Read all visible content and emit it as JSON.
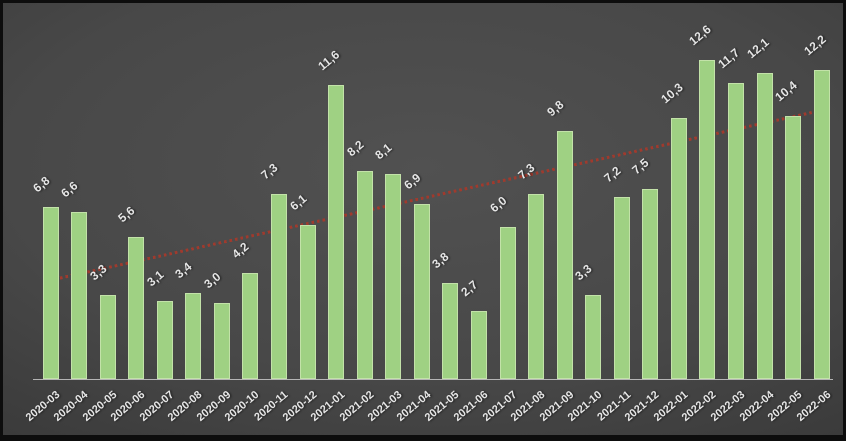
{
  "chart_data": {
    "type": "bar",
    "title": "",
    "xlabel": "",
    "ylabel": "",
    "ylim": [
      0,
      14
    ],
    "grid": false,
    "legend": false,
    "decimal_separator": ",",
    "categories": [
      "2020-03",
      "2020-04",
      "2020-05",
      "2020-06",
      "2020-07",
      "2020-08",
      "2020-09",
      "2020-10",
      "2020-11",
      "2020-12",
      "2021-01",
      "2021-02",
      "2021-03",
      "2021-04",
      "2021-05",
      "2021-06",
      "2021-07",
      "2021-08",
      "2021-09",
      "2021-10",
      "2021-11",
      "2021-12",
      "2022-01",
      "2022-02",
      "2022-03",
      "2022-04",
      "2022-05",
      "2022-06"
    ],
    "values": [
      6.8,
      6.6,
      3.3,
      5.6,
      3.1,
      3.4,
      3.0,
      4.2,
      7.3,
      6.1,
      11.6,
      8.2,
      8.1,
      6.9,
      3.8,
      2.7,
      6.0,
      7.3,
      9.8,
      3.3,
      7.2,
      7.5,
      10.3,
      12.6,
      11.7,
      12.1,
      10.4,
      12.2
    ],
    "data_labels": [
      "6,8",
      "6,6",
      "3,3",
      "5,6",
      "3,1",
      "3,4",
      "3,0",
      "4,2",
      "7,3",
      "6,1",
      "11,6",
      "8,2",
      "8,1",
      "6,9",
      "3,8",
      "2,7",
      "6,0",
      "7,3",
      "9,8",
      "3,3",
      "7,2",
      "7,5",
      "10,3",
      "12,6",
      "11,7",
      "12,1",
      "10,4",
      "12,2"
    ],
    "trendline": {
      "type": "linear",
      "style": "dotted",
      "color": "#a03a2d",
      "start_value": 3.9,
      "end_value": 10.6
    },
    "colors": {
      "bar_fill": "#9fd183",
      "bar_border": "#c3e2a9",
      "data_label": "#e6e6e6",
      "axis_label": "#dedede",
      "axis_line": "#c9c9c9",
      "background_center": "#4f4f4f",
      "background_edge": "#1c1c1c"
    }
  }
}
